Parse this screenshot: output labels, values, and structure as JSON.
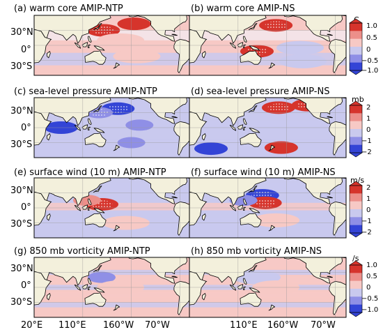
{
  "chart_data": [
    {
      "type": "heatmap",
      "row_label": "warm core",
      "colorbar": {
        "unit": "C",
        "ticks": [
          "1.0",
          "0.5",
          "0",
          "−0.5",
          "−1.0"
        ]
      },
      "panels": [
        {
          "label": "(a) warm core AMIP-NTP",
          "anomalies": [
            {
              "region": "east of Japan",
              "lon": 148,
              "lat": 30,
              "sign": "positive",
              "magnitude": "strong",
              "significant": true
            },
            {
              "region": "northeast Pacific",
              "lon": 205,
              "lat": 43,
              "sign": "positive",
              "magnitude": "strong",
              "significant": false
            },
            {
              "region": "tropical North Pacific",
              "lon": 180,
              "lat": 10,
              "sign": "positive",
              "magnitude": "weak",
              "significant": false
            },
            {
              "region": "South Pacific",
              "lon": 210,
              "lat": -22,
              "sign": "positive",
              "magnitude": "weak",
              "significant": false
            }
          ]
        },
        {
          "label": "(b) warm core AMIP-NS",
          "anomalies": [
            {
              "region": "North Pacific",
              "lon": 180,
              "lat": 40,
              "sign": "positive",
              "magnitude": "strong",
              "significant": true
            },
            {
              "region": "tropical western Pacific",
              "lon": 145,
              "lat": -12,
              "sign": "positive",
              "magnitude": "strong",
              "significant": true
            },
            {
              "region": "tropical eastern Pacific",
              "lon": 225,
              "lat": -5,
              "sign": "negative",
              "magnitude": "weak",
              "significant": false
            },
            {
              "region": "South Pacific",
              "lon": 230,
              "lat": -32,
              "sign": "negative",
              "magnitude": "weak",
              "significant": false
            }
          ]
        }
      ]
    },
    {
      "type": "heatmap",
      "row_label": "sea-level pressure",
      "colorbar": {
        "unit": "mb",
        "ticks": [
          "2",
          "1",
          "0",
          "−1",
          "−2"
        ]
      },
      "panels": [
        {
          "label": "(c) sea-level pressure AMIP-NTP",
          "anomalies": [
            {
              "region": "North Pacific",
              "lon": 175,
              "lat": 38,
              "sign": "negative",
              "magnitude": "strong",
              "significant": true
            },
            {
              "region": "Indian Ocean",
              "lon": 70,
              "lat": 0,
              "sign": "negative",
              "magnitude": "strong",
              "significant": false
            },
            {
              "region": "western North Pacific",
              "lon": 140,
              "lat": 30,
              "sign": "negative",
              "magnitude": "moderate",
              "significant": true
            },
            {
              "region": "eastern Pacific",
              "lon": 215,
              "lat": 5,
              "sign": "negative",
              "magnitude": "moderate",
              "significant": false
            },
            {
              "region": "South Pacific",
              "lon": 200,
              "lat": -30,
              "sign": "negative",
              "magnitude": "moderate",
              "significant": false
            }
          ]
        },
        {
          "label": "(d) sea-level pressure AMIP-NS",
          "anomalies": [
            {
              "region": "North Pacific",
              "lon": 185,
              "lat": 40,
              "sign": "positive",
              "magnitude": "strong",
              "significant": true
            },
            {
              "region": "northeast Pacific",
              "lon": 240,
              "lat": 45,
              "sign": "positive",
              "magnitude": "strong",
              "significant": true
            },
            {
              "region": "South Pacific",
              "lon": 190,
              "lat": -40,
              "sign": "positive",
              "magnitude": "strong",
              "significant": false
            },
            {
              "region": "southern Indian Ocean",
              "lon": 60,
              "lat": -42,
              "sign": "negative",
              "magnitude": "strong",
              "significant": false
            }
          ]
        }
      ]
    },
    {
      "type": "heatmap",
      "row_label": "surface wind (10 m)",
      "colorbar": {
        "unit": "m/s",
        "ticks": [
          "2",
          "1",
          "0",
          "−1",
          "−2"
        ]
      },
      "panels": [
        {
          "label": "(e) surface wind (10 m) AMIP-NTP",
          "anomalies": [
            {
              "region": "western tropical Pacific",
              "lon": 145,
              "lat": 7,
              "sign": "positive",
              "magnitude": "strong",
              "significant": true
            },
            {
              "region": "South China Sea",
              "lon": 118,
              "lat": 15,
              "sign": "positive",
              "magnitude": "moderate",
              "significant": false
            },
            {
              "region": "South Pacific",
              "lon": 190,
              "lat": -30,
              "sign": "positive",
              "magnitude": "weak",
              "significant": false
            }
          ]
        },
        {
          "label": "(f) surface wind (10 m) AMIP-NS",
          "anomalies": [
            {
              "region": "western North Pacific",
              "lon": 155,
              "lat": 25,
              "sign": "negative",
              "magnitude": "strong",
              "significant": true
            },
            {
              "region": "tropical western Pacific",
              "lon": 160,
              "lat": 10,
              "sign": "positive",
              "magnitude": "strong",
              "significant": true
            },
            {
              "region": "South China Sea",
              "lon": 120,
              "lat": 15,
              "sign": "negative",
              "magnitude": "moderate",
              "significant": false
            },
            {
              "region": "South Pacific",
              "lon": 180,
              "lat": -25,
              "sign": "positive",
              "magnitude": "weak",
              "significant": false
            }
          ]
        }
      ]
    },
    {
      "type": "heatmap",
      "row_label": "850 mb vorticity",
      "colorbar": {
        "unit": "/s",
        "ticks": [
          "1.0",
          "0.5",
          "0",
          "−0.5",
          "−1.0"
        ]
      },
      "panels": [
        {
          "label": "(g) 850 mb vorticity AMIP-NTP",
          "anomalies": [
            {
              "region": "western North Pacific",
              "lon": 145,
              "lat": 20,
              "sign": "negative",
              "magnitude": "moderate",
              "significant": false
            },
            {
              "region": "tropical bands",
              "lon": 180,
              "lat": 0,
              "sign": "mixed",
              "magnitude": "weak",
              "significant": false
            }
          ]
        },
        {
          "label": "(h) 850 mb vorticity AMIP-NS",
          "anomalies": [
            {
              "region": "western North Pacific",
              "lon": 145,
              "lat": 20,
              "sign": "negative",
              "magnitude": "weak",
              "significant": false
            },
            {
              "region": "tropical bands",
              "lon": 180,
              "lat": 0,
              "sign": "mixed",
              "magnitude": "weak",
              "significant": false
            }
          ]
        }
      ]
    }
  ],
  "axes": {
    "lat_ticks": [
      "30°N",
      "0°",
      "30°S"
    ],
    "lat_values": [
      30,
      0,
      -30
    ],
    "lon_ticks": [
      "20°E",
      "110°E",
      "160°W",
      "70°W",
      "110°E",
      "160°W",
      "70°W"
    ],
    "lon_values": [
      20,
      110,
      200,
      290
    ],
    "lon_range": [
      20,
      310
    ],
    "lat_range": [
      -60,
      60
    ]
  },
  "colors": {
    "land": "#f3f0dc",
    "ocean_positive_weak": "#f7c9c5",
    "ocean_neutral": "#f3e7ec",
    "ocean_negative_weak": "#c9c9ee",
    "positive_moderate": "#ec8f8a",
    "positive_strong": "#d6342c",
    "negative_moderate": "#8f8fe6",
    "negative_strong": "#3344d6",
    "stipple": "#ffffff"
  }
}
